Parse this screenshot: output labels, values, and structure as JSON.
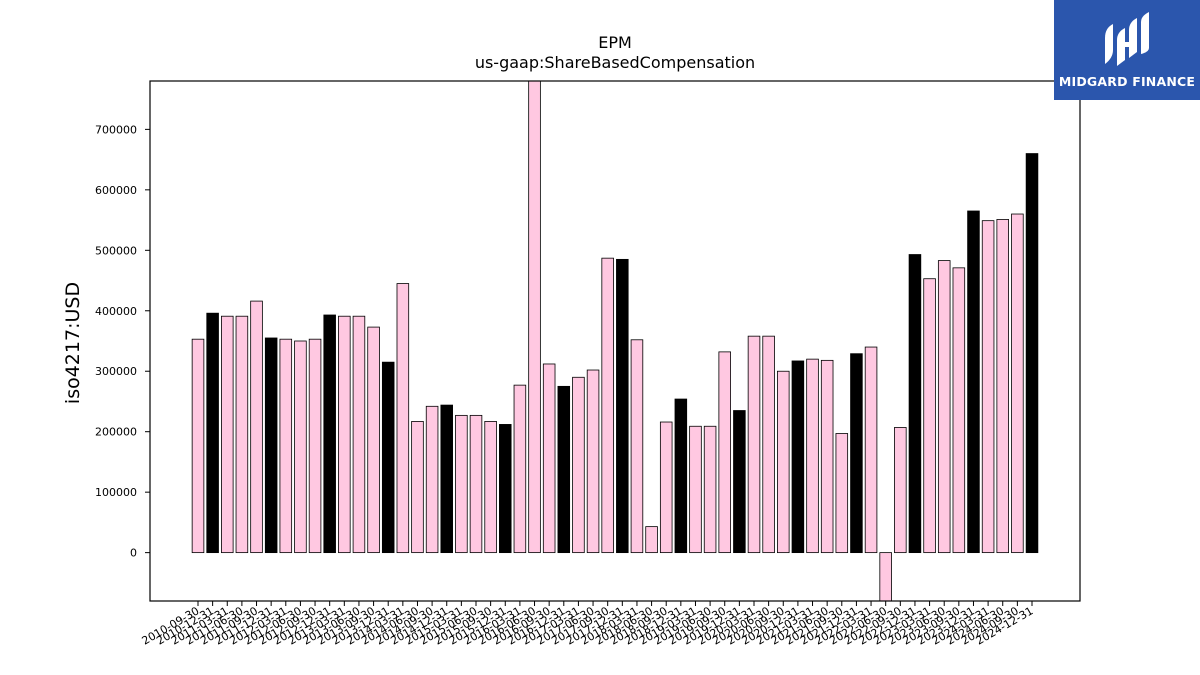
{
  "chart_data": {
    "type": "bar",
    "title": "EPM",
    "subtitle": "us-gaap:ShareBasedCompensation",
    "xlabel": "",
    "ylabel": "iso4217:USD",
    "ylim": [
      -80000,
      780000
    ],
    "yticks": [
      0,
      100000,
      200000,
      300000,
      400000,
      500000,
      600000,
      700000
    ],
    "grid": false,
    "colors": {
      "pink": "#ffc8e1",
      "black": "#000000",
      "edge": "#000000"
    },
    "categories": [
      "2010-09-30",
      "2010-12-31",
      "2011-03-31",
      "2011-06-30",
      "2011-09-30",
      "2011-12-31",
      "2012-03-31",
      "2012-06-30",
      "2012-09-30",
      "2012-12-31",
      "2013-03-31",
      "2013-06-30",
      "2013-09-30",
      "2013-12-31",
      "2014-03-31",
      "2014-06-30",
      "2014-09-30",
      "2014-12-31",
      "2015-03-31",
      "2015-06-30",
      "2015-09-30",
      "2015-12-31",
      "2016-03-31",
      "2016-06-30",
      "2016-09-30",
      "2016-12-31",
      "2017-03-31",
      "2017-06-30",
      "2017-09-30",
      "2017-12-31",
      "2018-03-31",
      "2018-06-30",
      "2018-09-30",
      "2018-12-31",
      "2019-03-31",
      "2019-06-30",
      "2019-09-30",
      "2019-12-31",
      "2020-03-31",
      "2020-06-30",
      "2020-09-30",
      "2020-12-31",
      "2021-03-31",
      "2021-06-30",
      "2021-09-30",
      "2021-12-31",
      "2022-03-31",
      "2022-06-30",
      "2022-09-30",
      "2022-12-31",
      "2023-03-31",
      "2023-06-30",
      "2023-09-30",
      "2023-12-31",
      "2024-03-31",
      "2024-06-30",
      "2024-09-30",
      "2024-12-31"
    ],
    "values": [
      353000,
      396000,
      391000,
      391000,
      416000,
      355000,
      353000,
      350000,
      353000,
      393000,
      391000,
      391000,
      373000,
      315000,
      445000,
      217000,
      242000,
      244000,
      227000,
      227000,
      217000,
      212000,
      277000,
      790000,
      312000,
      275000,
      290000,
      302000,
      487000,
      485000,
      352000,
      43000,
      216000,
      254000,
      209000,
      209000,
      332000,
      235000,
      358000,
      358000,
      300000,
      317000,
      320000,
      318000,
      197000,
      329000,
      340000,
      -90000,
      207000,
      493000,
      453000,
      483000,
      471000,
      565000,
      549000,
      551000,
      560000,
      660000
    ],
    "bar_colors": [
      "pink",
      "black",
      "pink",
      "pink",
      "pink",
      "black",
      "pink",
      "pink",
      "pink",
      "black",
      "pink",
      "pink",
      "pink",
      "black",
      "pink",
      "pink",
      "pink",
      "black",
      "pink",
      "pink",
      "pink",
      "black",
      "pink",
      "pink",
      "pink",
      "black",
      "pink",
      "pink",
      "pink",
      "black",
      "pink",
      "pink",
      "pink",
      "black",
      "pink",
      "pink",
      "pink",
      "black",
      "pink",
      "pink",
      "pink",
      "black",
      "pink",
      "pink",
      "pink",
      "black",
      "pink",
      "pink",
      "pink",
      "black",
      "pink",
      "pink",
      "pink",
      "black",
      "pink",
      "pink",
      "pink",
      "black"
    ]
  },
  "logo": {
    "text": "MIDGARD FINANCE",
    "background": "#2b56ad",
    "icon": "midgard-logo-mark"
  }
}
